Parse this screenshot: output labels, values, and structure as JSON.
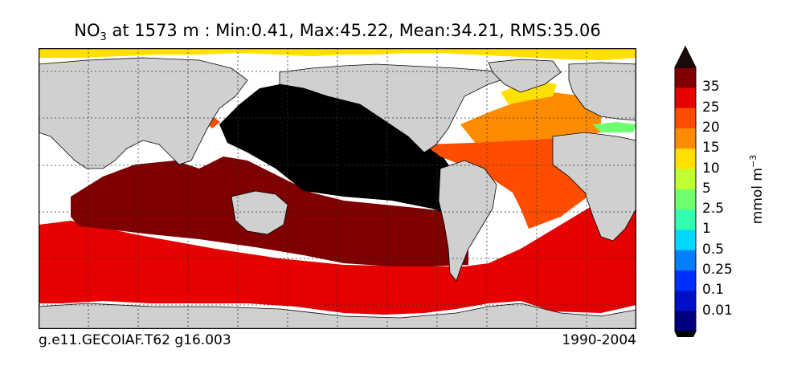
{
  "title": {
    "species": "NO",
    "subscript": "3",
    "rest": " at 1573 m : Min:0.41, Max:45.22, Mean:34.21, RMS:35.06"
  },
  "colorbar": {
    "ticks": [
      "35",
      "25",
      "20",
      "15",
      "10",
      "5",
      "2.5",
      "1",
      "0.5",
      "0.25",
      "0.1",
      "0.01"
    ],
    "units_base": "mmol m",
    "units_exp": "−3",
    "colors": [
      "#7f0000",
      "#e60000",
      "#ff4d00",
      "#ff8c00",
      "#ffe000",
      "#c0ff30",
      "#70ff70",
      "#30ffb0",
      "#00d8ff",
      "#0080ff",
      "#0030ff",
      "#0010c8",
      "#000080"
    ],
    "top_triangle": "#1a0a0a",
    "bottom_triangle": "#000000"
  },
  "footer": {
    "left": "g.e11.GECOIAF.T62 g16.003",
    "right": "1990-2004"
  }
}
